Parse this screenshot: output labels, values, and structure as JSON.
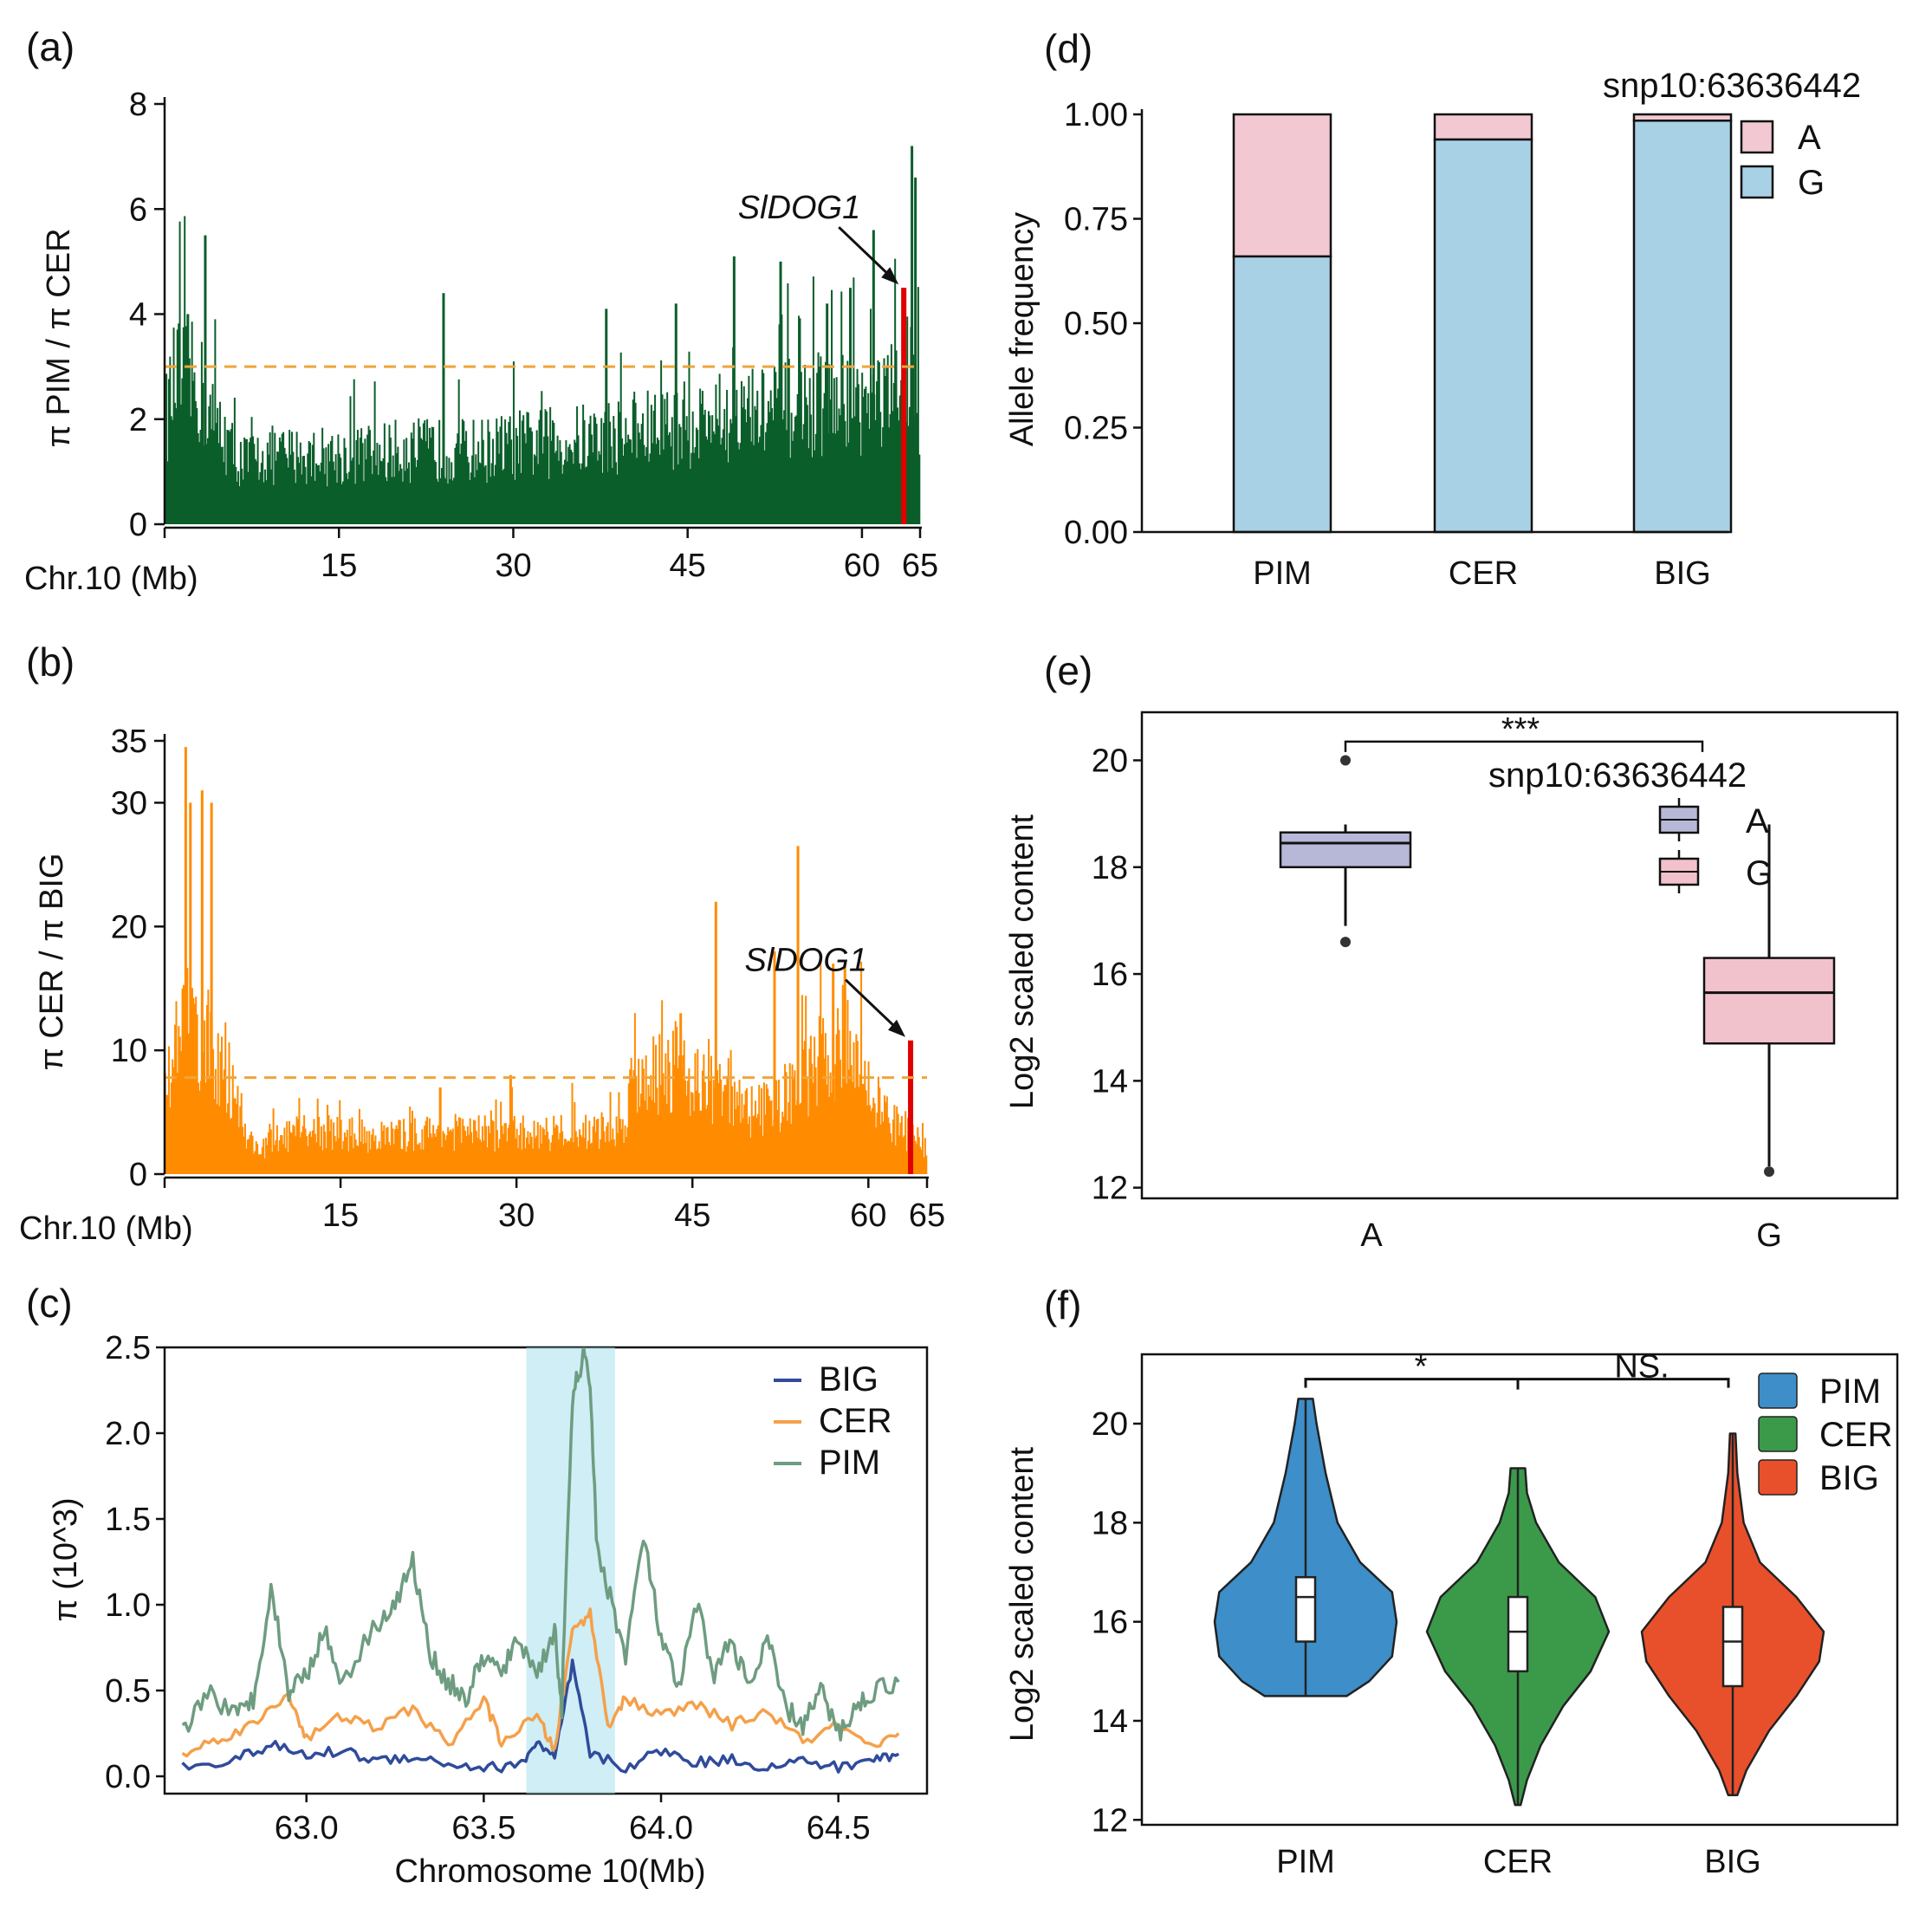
{
  "figure_colors": {
    "green_fill": "#0b5e2a",
    "orange_fill": "#ff8c00",
    "threshold": "#f0a53a",
    "highlight": "#e00000",
    "allele_A": "#f2c9d3",
    "allele_G": "#a9d1e6",
    "boxA": "#b7b7d8",
    "boxG": "#f2c2cc",
    "violin_PIM": "#3d8ec9",
    "violin_CER": "#3b9a4a",
    "violin_BIG": "#e8502c",
    "line_BIG": "#2f4b9a",
    "line_CER": "#f5a04a",
    "line_PIM": "#6e9c80",
    "shade": "#a8e0ee"
  },
  "chart_data": [
    {
      "panel": "(a)",
      "type": "area",
      "ylabel": "π PIM / π CER",
      "xlabel": "Chr.10 (Mb)",
      "xticks": [
        "15",
        "30",
        "45",
        "60",
        "65"
      ],
      "xtick_values": [
        15,
        30,
        45,
        60,
        65
      ],
      "yticks": [
        "0",
        "2",
        "4",
        "6",
        "8"
      ],
      "ylim": [
        0,
        8
      ],
      "xlim": [
        0,
        65
      ],
      "threshold": 3.0,
      "gene_label": "SlDOG1",
      "gene_pos": 63.6,
      "gene_value": 4.5,
      "profile": [
        [
          0,
          1.9
        ],
        [
          1,
          2.8
        ],
        [
          2,
          2.7
        ],
        [
          3,
          2.6
        ],
        [
          4,
          2.0
        ],
        [
          5,
          1.8
        ],
        [
          6,
          1.3
        ],
        [
          7,
          1.2
        ],
        [
          9,
          1.3
        ],
        [
          12,
          1.3
        ],
        [
          15,
          1.3
        ],
        [
          18,
          1.35
        ],
        [
          21,
          1.4
        ],
        [
          24,
          1.4
        ],
        [
          27,
          1.4
        ],
        [
          30,
          1.5
        ],
        [
          33,
          1.55
        ],
        [
          36,
          1.6
        ],
        [
          39,
          1.7
        ],
        [
          42,
          1.8
        ],
        [
          45,
          1.9
        ],
        [
          48,
          2.0
        ],
        [
          51,
          2.1
        ],
        [
          54,
          2.2
        ],
        [
          57,
          2.3
        ],
        [
          60,
          2.3
        ],
        [
          62,
          2.4
        ],
        [
          64,
          2.4
        ],
        [
          65,
          2.3
        ]
      ],
      "spikes": [
        [
          2,
          4.0
        ],
        [
          3.5,
          5.5
        ],
        [
          24,
          4.4
        ],
        [
          38,
          4.1
        ],
        [
          44,
          4.2
        ],
        [
          49,
          5.1
        ],
        [
          53,
          5.0
        ],
        [
          57,
          4.2
        ],
        [
          59,
          4.5
        ],
        [
          61,
          5.6
        ],
        [
          63.5,
          4.5
        ],
        [
          64.3,
          7.2
        ],
        [
          64.6,
          6.6
        ]
      ]
    },
    {
      "panel": "(b)",
      "type": "area",
      "ylabel": "π CER / π BIG",
      "xlabel": "Chr.10 (Mb)",
      "xticks": [
        "15",
        "30",
        "45",
        "60",
        "65"
      ],
      "xtick_values": [
        15,
        30,
        45,
        60,
        65
      ],
      "yticks": [
        "0",
        "10",
        "20",
        "30",
        "35"
      ],
      "ylim": [
        0,
        35
      ],
      "xlim": [
        0,
        65
      ],
      "threshold": 7.8,
      "gene_label": "SlDOG1",
      "gene_pos": 63.6,
      "gene_value": 10.8,
      "profile": [
        [
          0,
          8
        ],
        [
          1,
          10
        ],
        [
          2,
          12
        ],
        [
          3,
          11
        ],
        [
          4,
          10
        ],
        [
          5,
          9
        ],
        [
          6,
          7
        ],
        [
          7,
          3
        ],
        [
          8,
          2
        ],
        [
          10,
          3
        ],
        [
          13,
          3.5
        ],
        [
          16,
          3.2
        ],
        [
          19,
          3
        ],
        [
          22,
          3.3
        ],
        [
          25,
          3.4
        ],
        [
          28,
          3.3
        ],
        [
          31,
          3.3
        ],
        [
          34,
          3.4
        ],
        [
          37,
          3.5
        ],
        [
          39,
          3.6
        ],
        [
          40,
          8
        ],
        [
          42,
          8.5
        ],
        [
          44,
          9
        ],
        [
          46,
          7
        ],
        [
          48,
          6
        ],
        [
          50,
          5
        ],
        [
          52,
          5.5
        ],
        [
          54,
          7
        ],
        [
          56,
          9
        ],
        [
          58,
          11
        ],
        [
          60,
          7
        ],
        [
          62,
          4
        ],
        [
          64,
          3
        ],
        [
          65,
          2
        ]
      ],
      "spikes": [
        [
          1.8,
          34.5
        ],
        [
          2.2,
          30
        ],
        [
          3.2,
          31
        ],
        [
          4.0,
          30
        ],
        [
          23.5,
          7
        ],
        [
          29.5,
          8
        ],
        [
          44,
          13
        ],
        [
          47,
          22
        ],
        [
          52,
          18
        ],
        [
          54,
          26.5
        ],
        [
          57,
          17
        ],
        [
          58,
          17
        ]
      ]
    },
    {
      "panel": "(c)",
      "type": "line",
      "ylabel": "π (10^3)",
      "xlabel": "Chromosome 10(Mb)",
      "xticks": [
        "63.0",
        "63.5",
        "64.0",
        "64.5"
      ],
      "xtick_values": [
        63.0,
        63.5,
        64.0,
        64.5
      ],
      "yticks": [
        "0.0",
        "0.5",
        "1.0",
        "1.5",
        "2.0",
        "2.5"
      ],
      "ylim": [
        0,
        2.5
      ],
      "xlim": [
        62.6,
        64.75
      ],
      "highlight_range": [
        63.62,
        63.87
      ],
      "series": [
        {
          "name": "BIG",
          "values": [
            [
              62.65,
              0.06
            ],
            [
              62.8,
              0.1
            ],
            [
              62.9,
              0.18
            ],
            [
              63.0,
              0.12
            ],
            [
              63.1,
              0.15
            ],
            [
              63.2,
              0.09
            ],
            [
              63.3,
              0.12
            ],
            [
              63.4,
              0.07
            ],
            [
              63.5,
              0.05
            ],
            [
              63.6,
              0.06
            ],
            [
              63.65,
              0.2
            ],
            [
              63.7,
              0.1
            ],
            [
              63.75,
              0.65
            ],
            [
              63.8,
              0.13
            ],
            [
              63.9,
              0.05
            ],
            [
              64.0,
              0.15
            ],
            [
              64.1,
              0.08
            ],
            [
              64.2,
              0.1
            ],
            [
              64.3,
              0.05
            ],
            [
              64.4,
              0.09
            ],
            [
              64.5,
              0.05
            ],
            [
              64.6,
              0.1
            ],
            [
              64.67,
              0.13
            ]
          ]
        },
        {
          "name": "CER",
          "values": [
            [
              62.65,
              0.12
            ],
            [
              62.75,
              0.22
            ],
            [
              62.85,
              0.3
            ],
            [
              62.95,
              0.48
            ],
            [
              63.0,
              0.22
            ],
            [
              63.1,
              0.35
            ],
            [
              63.2,
              0.28
            ],
            [
              63.3,
              0.4
            ],
            [
              63.4,
              0.18
            ],
            [
              63.5,
              0.45
            ],
            [
              63.55,
              0.2
            ],
            [
              63.65,
              0.35
            ],
            [
              63.7,
              0.15
            ],
            [
              63.75,
              0.85
            ],
            [
              63.8,
              0.95
            ],
            [
              63.85,
              0.3
            ],
            [
              63.9,
              0.45
            ],
            [
              64.0,
              0.35
            ],
            [
              64.1,
              0.42
            ],
            [
              64.2,
              0.3
            ],
            [
              64.3,
              0.38
            ],
            [
              64.4,
              0.2
            ],
            [
              64.5,
              0.3
            ],
            [
              64.6,
              0.15
            ],
            [
              64.67,
              0.25
            ]
          ]
        },
        {
          "name": "PIM",
          "values": [
            [
              62.65,
              0.25
            ],
            [
              62.72,
              0.5
            ],
            [
              62.8,
              0.35
            ],
            [
              62.85,
              0.45
            ],
            [
              62.9,
              1.1
            ],
            [
              62.95,
              0.5
            ],
            [
              63.0,
              0.6
            ],
            [
              63.05,
              0.85
            ],
            [
              63.1,
              0.55
            ],
            [
              63.2,
              0.9
            ],
            [
              63.25,
              1.0
            ],
            [
              63.3,
              1.25
            ],
            [
              63.35,
              0.7
            ],
            [
              63.4,
              0.55
            ],
            [
              63.45,
              0.45
            ],
            [
              63.5,
              0.7
            ],
            [
              63.55,
              0.6
            ],
            [
              63.6,
              0.8
            ],
            [
              63.65,
              0.6
            ],
            [
              63.7,
              0.85
            ],
            [
              63.72,
              0.4
            ],
            [
              63.75,
              2.2
            ],
            [
              63.78,
              2.45
            ],
            [
              63.8,
              2.3
            ],
            [
              63.82,
              1.3
            ],
            [
              63.85,
              1.1
            ],
            [
              63.9,
              0.7
            ],
            [
              63.95,
              1.4
            ],
            [
              64.0,
              0.8
            ],
            [
              64.05,
              0.5
            ],
            [
              64.1,
              1.0
            ],
            [
              64.15,
              0.6
            ],
            [
              64.2,
              0.8
            ],
            [
              64.25,
              0.5
            ],
            [
              64.3,
              0.8
            ],
            [
              64.35,
              0.4
            ],
            [
              64.4,
              0.3
            ],
            [
              64.45,
              0.5
            ],
            [
              64.5,
              0.25
            ],
            [
              64.55,
              0.4
            ],
            [
              64.6,
              0.5
            ],
            [
              64.67,
              0.55
            ]
          ]
        }
      ],
      "legend": [
        "BIG",
        "CER",
        "PIM"
      ]
    },
    {
      "panel": "(d)",
      "type": "bar",
      "stacked": true,
      "title": "snp10:63636442",
      "ylabel": "Allele frequency",
      "categories": [
        "PIM",
        "CER",
        "BIG"
      ],
      "yticks": [
        "0.00",
        "0.25",
        "0.50",
        "0.75",
        "1.00"
      ],
      "ylim": [
        0,
        1
      ],
      "series": [
        {
          "name": "G",
          "values": [
            0.66,
            0.94,
            0.985
          ]
        },
        {
          "name": "A",
          "values": [
            0.34,
            0.06,
            0.015
          ]
        }
      ],
      "legend": [
        "A",
        "G"
      ]
    },
    {
      "panel": "(e)",
      "type": "box",
      "title": "snp10:63636442",
      "ylabel": "Log2 scaled content",
      "categories": [
        "A",
        "G"
      ],
      "yticks": [
        "12",
        "14",
        "16",
        "18",
        "20"
      ],
      "ylim": [
        11.8,
        20.9
      ],
      "boxes": [
        {
          "name": "A",
          "q1": 18.0,
          "median": 18.45,
          "q3": 18.65,
          "whisker_low": 16.9,
          "whisker_high": 18.8,
          "outliers": [
            20.0,
            16.6
          ]
        },
        {
          "name": "G",
          "q1": 14.7,
          "median": 15.65,
          "q3": 16.3,
          "whisker_low": 12.4,
          "whisker_high": 18.8,
          "outliers": [
            12.3
          ]
        }
      ],
      "significance": "***",
      "legend": [
        "A",
        "G"
      ]
    },
    {
      "panel": "(f)",
      "type": "violin",
      "ylabel": "Log2 scaled content",
      "categories": [
        "PIM",
        "CER",
        "BIG"
      ],
      "yticks": [
        "12",
        "14",
        "16",
        "18",
        "20"
      ],
      "ylim": [
        11.9,
        21.4
      ],
      "violins": [
        {
          "name": "PIM",
          "min": 14.5,
          "max": 20.5,
          "q1": 15.6,
          "median": 16.5,
          "q3": 16.9,
          "profile": [
            [
              14.5,
              0.45
            ],
            [
              14.8,
              0.7
            ],
            [
              15.3,
              0.95
            ],
            [
              16.0,
              1.0
            ],
            [
              16.6,
              0.95
            ],
            [
              17.2,
              0.6
            ],
            [
              18.0,
              0.35
            ],
            [
              19.0,
              0.22
            ],
            [
              20.0,
              0.12
            ],
            [
              20.5,
              0.08
            ]
          ]
        },
        {
          "name": "CER",
          "min": 12.3,
          "max": 19.1,
          "q1": 15.0,
          "median": 15.8,
          "q3": 16.5,
          "profile": [
            [
              12.3,
              0.03
            ],
            [
              12.8,
              0.1
            ],
            [
              13.5,
              0.25
            ],
            [
              14.3,
              0.5
            ],
            [
              15.0,
              0.8
            ],
            [
              15.8,
              1.0
            ],
            [
              16.5,
              0.85
            ],
            [
              17.2,
              0.45
            ],
            [
              18.0,
              0.2
            ],
            [
              18.6,
              0.1
            ],
            [
              19.1,
              0.08
            ]
          ]
        },
        {
          "name": "BIG",
          "min": 12.5,
          "max": 19.8,
          "q1": 14.7,
          "median": 15.6,
          "q3": 16.3,
          "profile": [
            [
              12.5,
              0.05
            ],
            [
              13.0,
              0.15
            ],
            [
              13.8,
              0.4
            ],
            [
              14.5,
              0.7
            ],
            [
              15.2,
              0.95
            ],
            [
              15.8,
              1.0
            ],
            [
              16.5,
              0.7
            ],
            [
              17.2,
              0.3
            ],
            [
              18.0,
              0.12
            ],
            [
              19.0,
              0.05
            ],
            [
              19.8,
              0.03
            ]
          ]
        }
      ],
      "significance": [
        "*",
        "NS."
      ],
      "legend": [
        "PIM",
        "CER",
        "BIG"
      ]
    }
  ]
}
